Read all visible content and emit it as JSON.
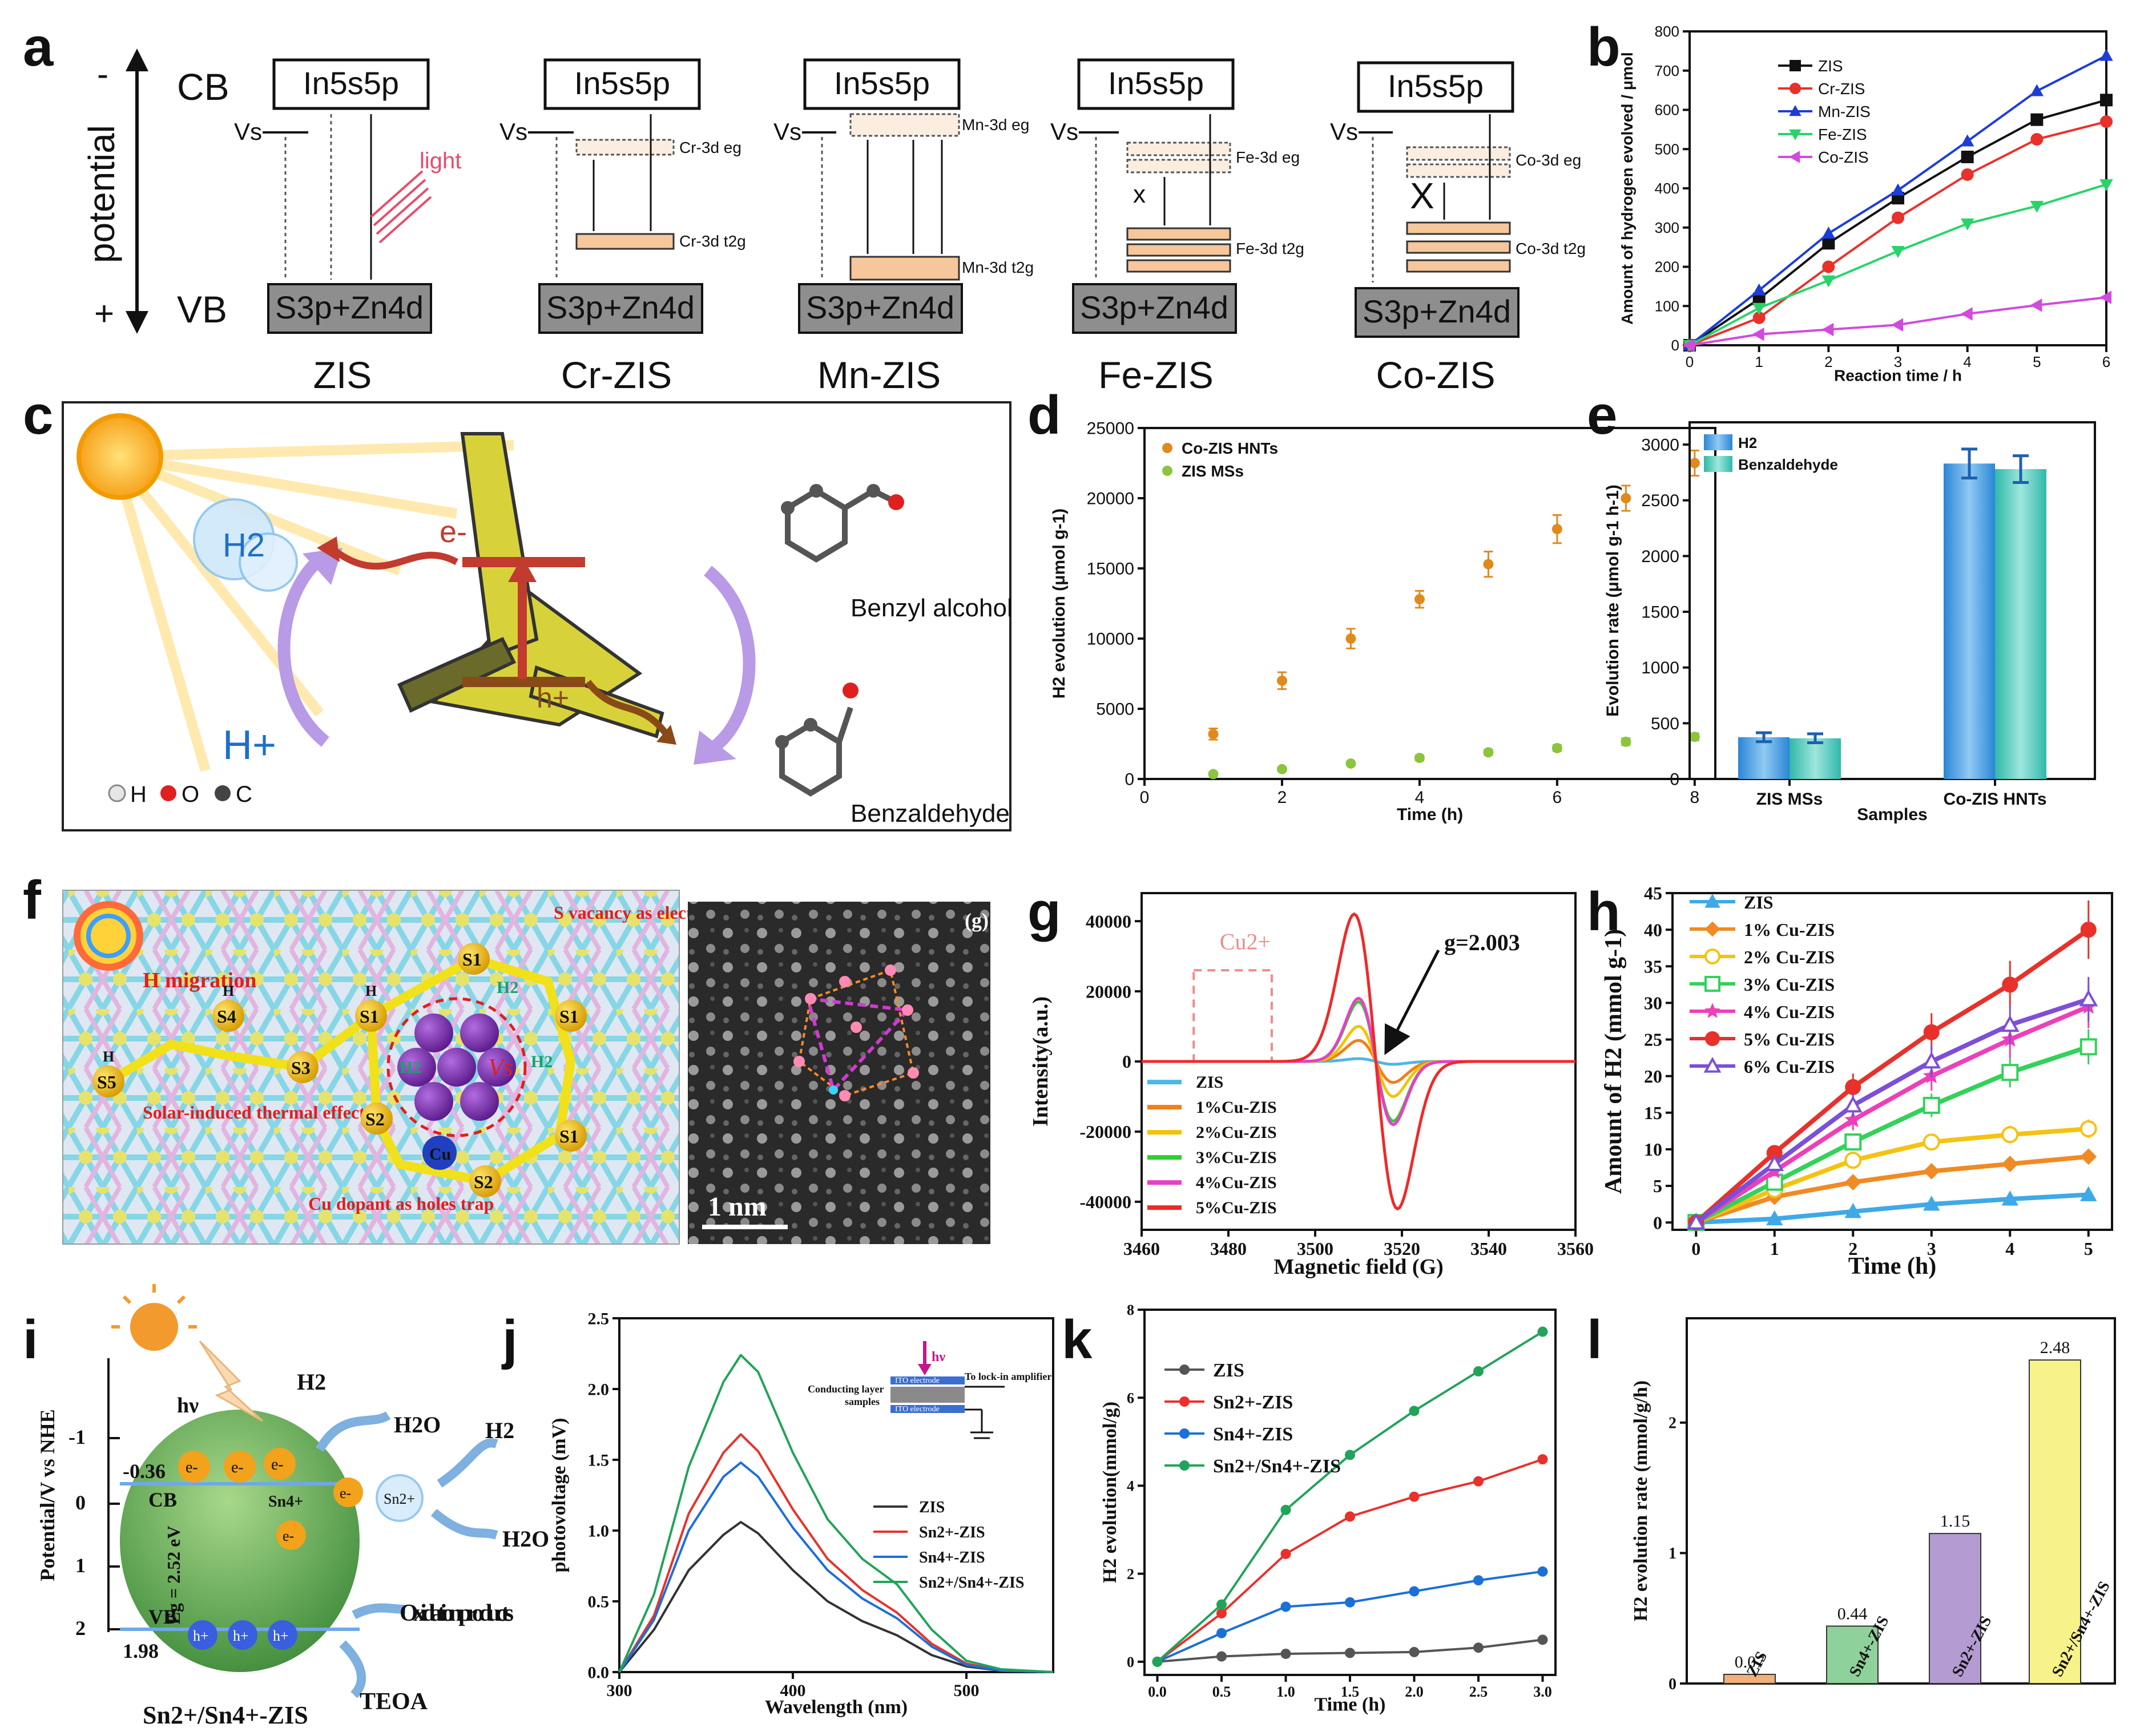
{
  "panel_letters": [
    "a",
    "b",
    "c",
    "d",
    "e",
    "f",
    "g",
    "h",
    "i",
    "j",
    "k",
    "l"
  ],
  "panel_a": {
    "cb": "CB",
    "vb": "VB",
    "potential": "potential",
    "minus": "-",
    "plus": "+",
    "cb_level": "In5s5p",
    "vb_level": "S3p+Zn4d",
    "vs": "Vs",
    "light": "light",
    "x_mark": "X",
    "x_mark_small": "x",
    "samples": [
      "ZIS",
      "Cr-ZIS",
      "Mn-ZIS",
      "Fe-ZIS",
      "Co-ZIS"
    ],
    "dopant_labels": {
      "cr_eg": "Cr-3d eg",
      "cr_t2g": "Cr-3d t2g",
      "mn_eg": "Mn-3d eg",
      "mn_t2g": "Mn-3d t2g",
      "fe_eg": "Fe-3d eg",
      "fe_t2g": "Fe-3d t2g",
      "co_eg": "Co-3d eg",
      "co_t2g": "Co-3d t2g"
    }
  },
  "panel_c": {
    "h2": "H2",
    "h_plus": "H+",
    "e_minus": "e-",
    "h_plus_small": "h+",
    "benzyl_alcohol": "Benzyl alcohol",
    "benzaldehyde": "Benzaldehyde",
    "legend": [
      "H",
      "O",
      "C"
    ]
  },
  "panel_f": {
    "h_migration": "H migration",
    "s_vacancy": "S vacancy as electron trap",
    "solar": "Solar-induced thermal effect",
    "cu_dopant": "Cu dopant as holes trap",
    "vs": "Vs",
    "cu": "Cu",
    "h2": "H2",
    "h": "H",
    "sites": [
      "S1",
      "S1",
      "S1",
      "S1",
      "S2",
      "S2",
      "S3",
      "S4",
      "S5"
    ],
    "scale": "1 nm",
    "inset_label": "(g)"
  },
  "panel_i": {
    "ylabel": "Potential/V vs NHE",
    "ticks": [
      "-1",
      "0",
      "1",
      "2"
    ],
    "cb_value": "-0.36",
    "vb_value": "1.98",
    "cb": "CB",
    "vb": "VB",
    "eg": "Eg = 2.52 eV",
    "hv": "hν",
    "h2_1": "H2",
    "h2o_1": "H2O",
    "h2_2": "H2",
    "h2o_2": "H2O",
    "sn4": "Sn4+",
    "sn2": "Sn2+",
    "e": "e-",
    "h": "h+",
    "oxidation": "Oxidation products",
    "teoa": "TEOA",
    "title": "Sn2+/Sn4+-ZIS"
  },
  "panel_j_inset": {
    "hv": "hν",
    "ito_top": "ITO electrode",
    "lockin": "To lock-in amplifier",
    "conducting": "Conducting layer",
    "samples": "samples",
    "ito_bottom": "ITO electrode"
  },
  "chart_data": [
    {
      "panel": "b",
      "type": "line",
      "xlabel": "Reaction time / h",
      "ylabel": "Amount of hydrogen evolved / μmol",
      "xlim": [
        0,
        6
      ],
      "ylim": [
        0,
        800
      ],
      "xticks": [
        "0",
        "1",
        "2",
        "3",
        "4",
        "5",
        "6"
      ],
      "yticks": [
        "0",
        "100",
        "200",
        "300",
        "400",
        "500",
        "600",
        "700",
        "800"
      ],
      "x": [
        0,
        1,
        2,
        3,
        4,
        5,
        6
      ],
      "series": [
        {
          "name": "ZIS",
          "color": "#111111",
          "marker": "square",
          "values": [
            0,
            118,
            260,
            375,
            480,
            575,
            625
          ]
        },
        {
          "name": "Cr-ZIS",
          "color": "#e8312b",
          "marker": "circle",
          "values": [
            0,
            70,
            200,
            325,
            435,
            525,
            570
          ]
        },
        {
          "name": "Mn-ZIS",
          "color": "#1d3cd8",
          "marker": "triangle",
          "values": [
            0,
            140,
            285,
            395,
            520,
            648,
            738
          ]
        },
        {
          "name": "Fe-ZIS",
          "color": "#28d46a",
          "marker": "triangle-down",
          "values": [
            0,
            95,
            165,
            240,
            310,
            355,
            410
          ]
        },
        {
          "name": "Co-ZIS",
          "color": "#d24ade",
          "marker": "triangle-left",
          "values": [
            0,
            28,
            40,
            52,
            80,
            102,
            122
          ]
        }
      ]
    },
    {
      "panel": "d",
      "type": "scatter",
      "xlabel": "Time (h)",
      "ylabel": "H2 evolution (μmol g-1)",
      "xlim": [
        0,
        8.3
      ],
      "ylim": [
        0,
        25000
      ],
      "xticks": [
        "0",
        "2",
        "4",
        "6",
        "8"
      ],
      "yticks": [
        "0",
        "5000",
        "10000",
        "15000",
        "20000",
        "25000"
      ],
      "x": [
        1,
        2,
        3,
        4,
        5,
        6,
        7,
        8
      ],
      "series": [
        {
          "name": "Co-ZIS HNTs",
          "color": "#e08a1e",
          "values": [
            3200,
            7000,
            10000,
            12800,
            15300,
            17800,
            20000,
            22500
          ],
          "errors": [
            400,
            600,
            700,
            600,
            900,
            1000,
            900,
            900
          ]
        },
        {
          "name": "ZIS MSs",
          "color": "#8cc43c",
          "values": [
            350,
            700,
            1100,
            1500,
            1900,
            2200,
            2650,
            3000
          ],
          "errors": [
            100,
            120,
            150,
            180,
            200,
            220,
            250,
            250
          ]
        }
      ]
    },
    {
      "panel": "e",
      "type": "bar",
      "xlabel": "Samples",
      "ylabel": "Evolution rate (μmol g-1 h-1)",
      "categories": [
        "ZIS MSs",
        "Co-ZIS HNTs"
      ],
      "ylim": [
        0,
        3200
      ],
      "yticks": [
        "0",
        "500",
        "1000",
        "1500",
        "2000",
        "2500",
        "3000"
      ],
      "series": [
        {
          "name": "H2",
          "color": "#4aa3e6",
          "values": [
            375,
            2830
          ],
          "errors": [
            40,
            130
          ]
        },
        {
          "name": "Benzaldehyde",
          "color": "#47c9bd",
          "values": [
            365,
            2780
          ],
          "errors": [
            40,
            120
          ]
        }
      ]
    },
    {
      "panel": "g",
      "type": "line",
      "xlabel": "Magnetic field (G)",
      "ylabel": "Intensity(a.u.)",
      "xlim": [
        3460,
        3560
      ],
      "ylim": [
        -48000,
        48000
      ],
      "xticks": [
        "3460",
        "3480",
        "3500",
        "3520",
        "3540",
        "3560"
      ],
      "yticks": [
        "-40000",
        "-20000",
        "0",
        "20000",
        "40000"
      ],
      "annotations": [
        "Cu2+",
        "g=2.003"
      ],
      "series": [
        {
          "name": "ZIS",
          "color": "#4fb6e8",
          "amplitude": 800
        },
        {
          "name": "1%Cu-ZIS",
          "color": "#f07f1a",
          "amplitude": 6000
        },
        {
          "name": "2%Cu-ZIS",
          "color": "#f2c300",
          "amplitude": 10000
        },
        {
          "name": "3%Cu-ZIS",
          "color": "#2fcf2f",
          "amplitude": 17000
        },
        {
          "name": "4%Cu-ZIS",
          "color": "#e83fc8",
          "amplitude": 18000
        },
        {
          "name": "5%Cu-ZIS",
          "color": "#ee2a2a",
          "amplitude": 42000
        }
      ]
    },
    {
      "panel": "h",
      "type": "line",
      "xlabel": "Time (h)",
      "ylabel": "Amount of H2 (mmol g-1)",
      "xlim": [
        -0.3,
        5.3
      ],
      "ylim": [
        -1,
        45
      ],
      "xticks": [
        "0",
        "1",
        "2",
        "3",
        "4",
        "5"
      ],
      "yticks": [
        "0",
        "5",
        "10",
        "15",
        "20",
        "25",
        "30",
        "35",
        "40",
        "45"
      ],
      "x": [
        0,
        1,
        2,
        3,
        4,
        5
      ],
      "series": [
        {
          "name": "ZIS",
          "color": "#3fa9e8",
          "values": [
            0,
            0.5,
            1.5,
            2.5,
            3.2,
            3.8
          ]
        },
        {
          "name": "1% Cu-ZIS",
          "color": "#f08a24",
          "values": [
            0,
            3.5,
            5.5,
            7,
            8,
            9
          ]
        },
        {
          "name": "2% Cu-ZIS",
          "color": "#f5c211",
          "values": [
            0,
            4.5,
            8.5,
            11,
            12,
            12.8
          ]
        },
        {
          "name": "3% Cu-ZIS",
          "color": "#34d15b",
          "values": [
            0,
            5.5,
            11,
            16,
            20.5,
            24
          ]
        },
        {
          "name": "4% Cu-ZIS",
          "color": "#ef3fb8",
          "values": [
            0,
            7,
            14,
            20,
            25,
            29.5
          ]
        },
        {
          "name": "5% Cu-ZIS",
          "color": "#e8312b",
          "values": [
            0,
            9.5,
            18.5,
            26,
            32.5,
            40
          ]
        },
        {
          "name": "6% Cu-ZIS",
          "color": "#7c4fd8",
          "values": [
            0,
            8,
            16,
            22,
            27,
            30.5
          ]
        }
      ]
    },
    {
      "panel": "j",
      "type": "line",
      "xlabel": "Wavelength (nm)",
      "ylabel": "photovoltage (mV)",
      "xlim": [
        300,
        550
      ],
      "ylim": [
        0,
        2.5
      ],
      "xticks": [
        "300",
        "400",
        "500"
      ],
      "yticks": [
        "0.0",
        "0.5",
        "1.0",
        "1.5",
        "2.0",
        "2.5"
      ],
      "x": [
        300,
        320,
        340,
        360,
        370,
        380,
        400,
        420,
        440,
        460,
        480,
        500,
        520,
        550
      ],
      "series": [
        {
          "name": "ZIS",
          "color": "#333333",
          "values": [
            0,
            0.3,
            0.72,
            0.97,
            1.06,
            0.98,
            0.72,
            0.5,
            0.36,
            0.26,
            0.12,
            0.04,
            0.01,
            0
          ]
        },
        {
          "name": "Sn2+-ZIS",
          "color": "#e8312b",
          "values": [
            0,
            0.4,
            1.12,
            1.55,
            1.68,
            1.56,
            1.15,
            0.8,
            0.58,
            0.42,
            0.2,
            0.06,
            0.01,
            0
          ]
        },
        {
          "name": "Sn4+-ZIS",
          "color": "#1d6fd8",
          "values": [
            0,
            0.37,
            1.0,
            1.38,
            1.48,
            1.38,
            1.02,
            0.72,
            0.52,
            0.38,
            0.18,
            0.05,
            0.01,
            0
          ]
        },
        {
          "name": "Sn2+/Sn4+-ZIS",
          "color": "#22a35a",
          "values": [
            0,
            0.55,
            1.45,
            2.05,
            2.24,
            2.12,
            1.55,
            1.08,
            0.8,
            0.62,
            0.3,
            0.08,
            0.02,
            0
          ]
        }
      ]
    },
    {
      "panel": "k",
      "type": "line",
      "xlabel": "Time (h)",
      "ylabel": "H2 evolution(mmol/g)",
      "xlim": [
        -0.1,
        3.1
      ],
      "ylim": [
        -0.3,
        8
      ],
      "xticks": [
        "0.0",
        "0.5",
        "1.0",
        "1.5",
        "2.0",
        "2.5",
        "3.0"
      ],
      "yticks": [
        "0",
        "2",
        "4",
        "6",
        "8"
      ],
      "x": [
        0,
        0.5,
        1,
        1.5,
        2,
        2.5,
        3
      ],
      "series": [
        {
          "name": "ZIS",
          "color": "#555555",
          "values": [
            0,
            0.12,
            0.18,
            0.2,
            0.22,
            0.32,
            0.5
          ]
        },
        {
          "name": "Sn2+-ZIS",
          "color": "#e8312b",
          "values": [
            0,
            1.1,
            2.45,
            3.3,
            3.75,
            4.1,
            4.6
          ]
        },
        {
          "name": "Sn4+-ZIS",
          "color": "#1d6fd8",
          "values": [
            0,
            0.65,
            1.25,
            1.35,
            1.6,
            1.85,
            2.05
          ]
        },
        {
          "name": "Sn2+/Sn4+-ZIS",
          "color": "#22a35a",
          "values": [
            0,
            1.3,
            3.45,
            4.7,
            5.7,
            6.6,
            7.5
          ]
        }
      ]
    },
    {
      "panel": "l",
      "type": "bar",
      "ylabel": "H2 evolution rate (mmol/g/h)",
      "ylim": [
        0,
        2.8
      ],
      "yticks": [
        "0",
        "1",
        "2"
      ],
      "categories": [
        "ZIS",
        "Sn4+-ZIS",
        "Sn2+-ZIS",
        "Sn2+/Sn4+-ZIS"
      ],
      "values": [
        0.07,
        0.44,
        1.15,
        2.48
      ],
      "labels": [
        "0.07",
        "0.44",
        "1.15",
        "2.48"
      ],
      "colors": [
        "#f2b07a",
        "#8fd19a",
        "#b49bd2",
        "#f7f38a"
      ]
    }
  ]
}
